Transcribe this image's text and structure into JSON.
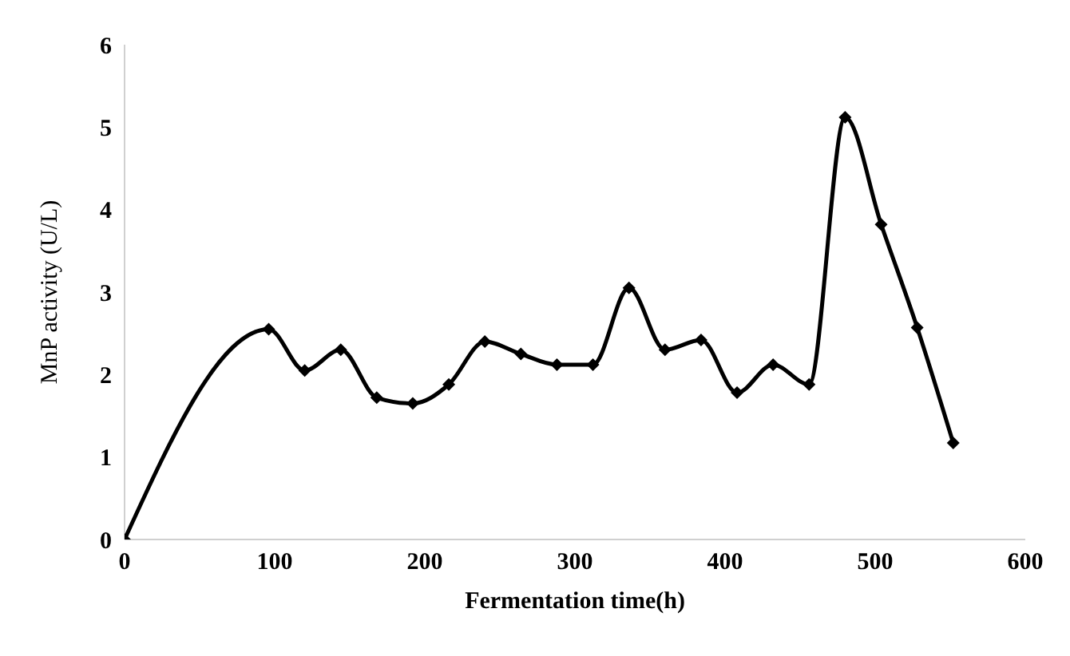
{
  "chart_data": {
    "type": "line",
    "xlabel": "Fermentation time(h)",
    "ylabel": "MnP activity (U/L)",
    "x": [
      0,
      96,
      120,
      144,
      168,
      192,
      216,
      240,
      264,
      288,
      312,
      336,
      360,
      384,
      408,
      432,
      456,
      480,
      504,
      528,
      552
    ],
    "values": [
      0,
      2.55,
      2.05,
      2.3,
      1.72,
      1.65,
      1.88,
      2.4,
      2.25,
      2.12,
      2.12,
      3.05,
      2.3,
      2.42,
      1.78,
      2.12,
      1.88,
      5.12,
      3.82,
      2.57,
      1.17
    ],
    "color": "#000000",
    "marker": "diamond",
    "grid": false,
    "xlim": [
      0,
      600
    ],
    "xticks": [
      0,
      100,
      200,
      300,
      400,
      500,
      600
    ],
    "ylim": [
      0,
      6
    ],
    "yticks": [
      0,
      1,
      2,
      3,
      4,
      5,
      6
    ]
  }
}
